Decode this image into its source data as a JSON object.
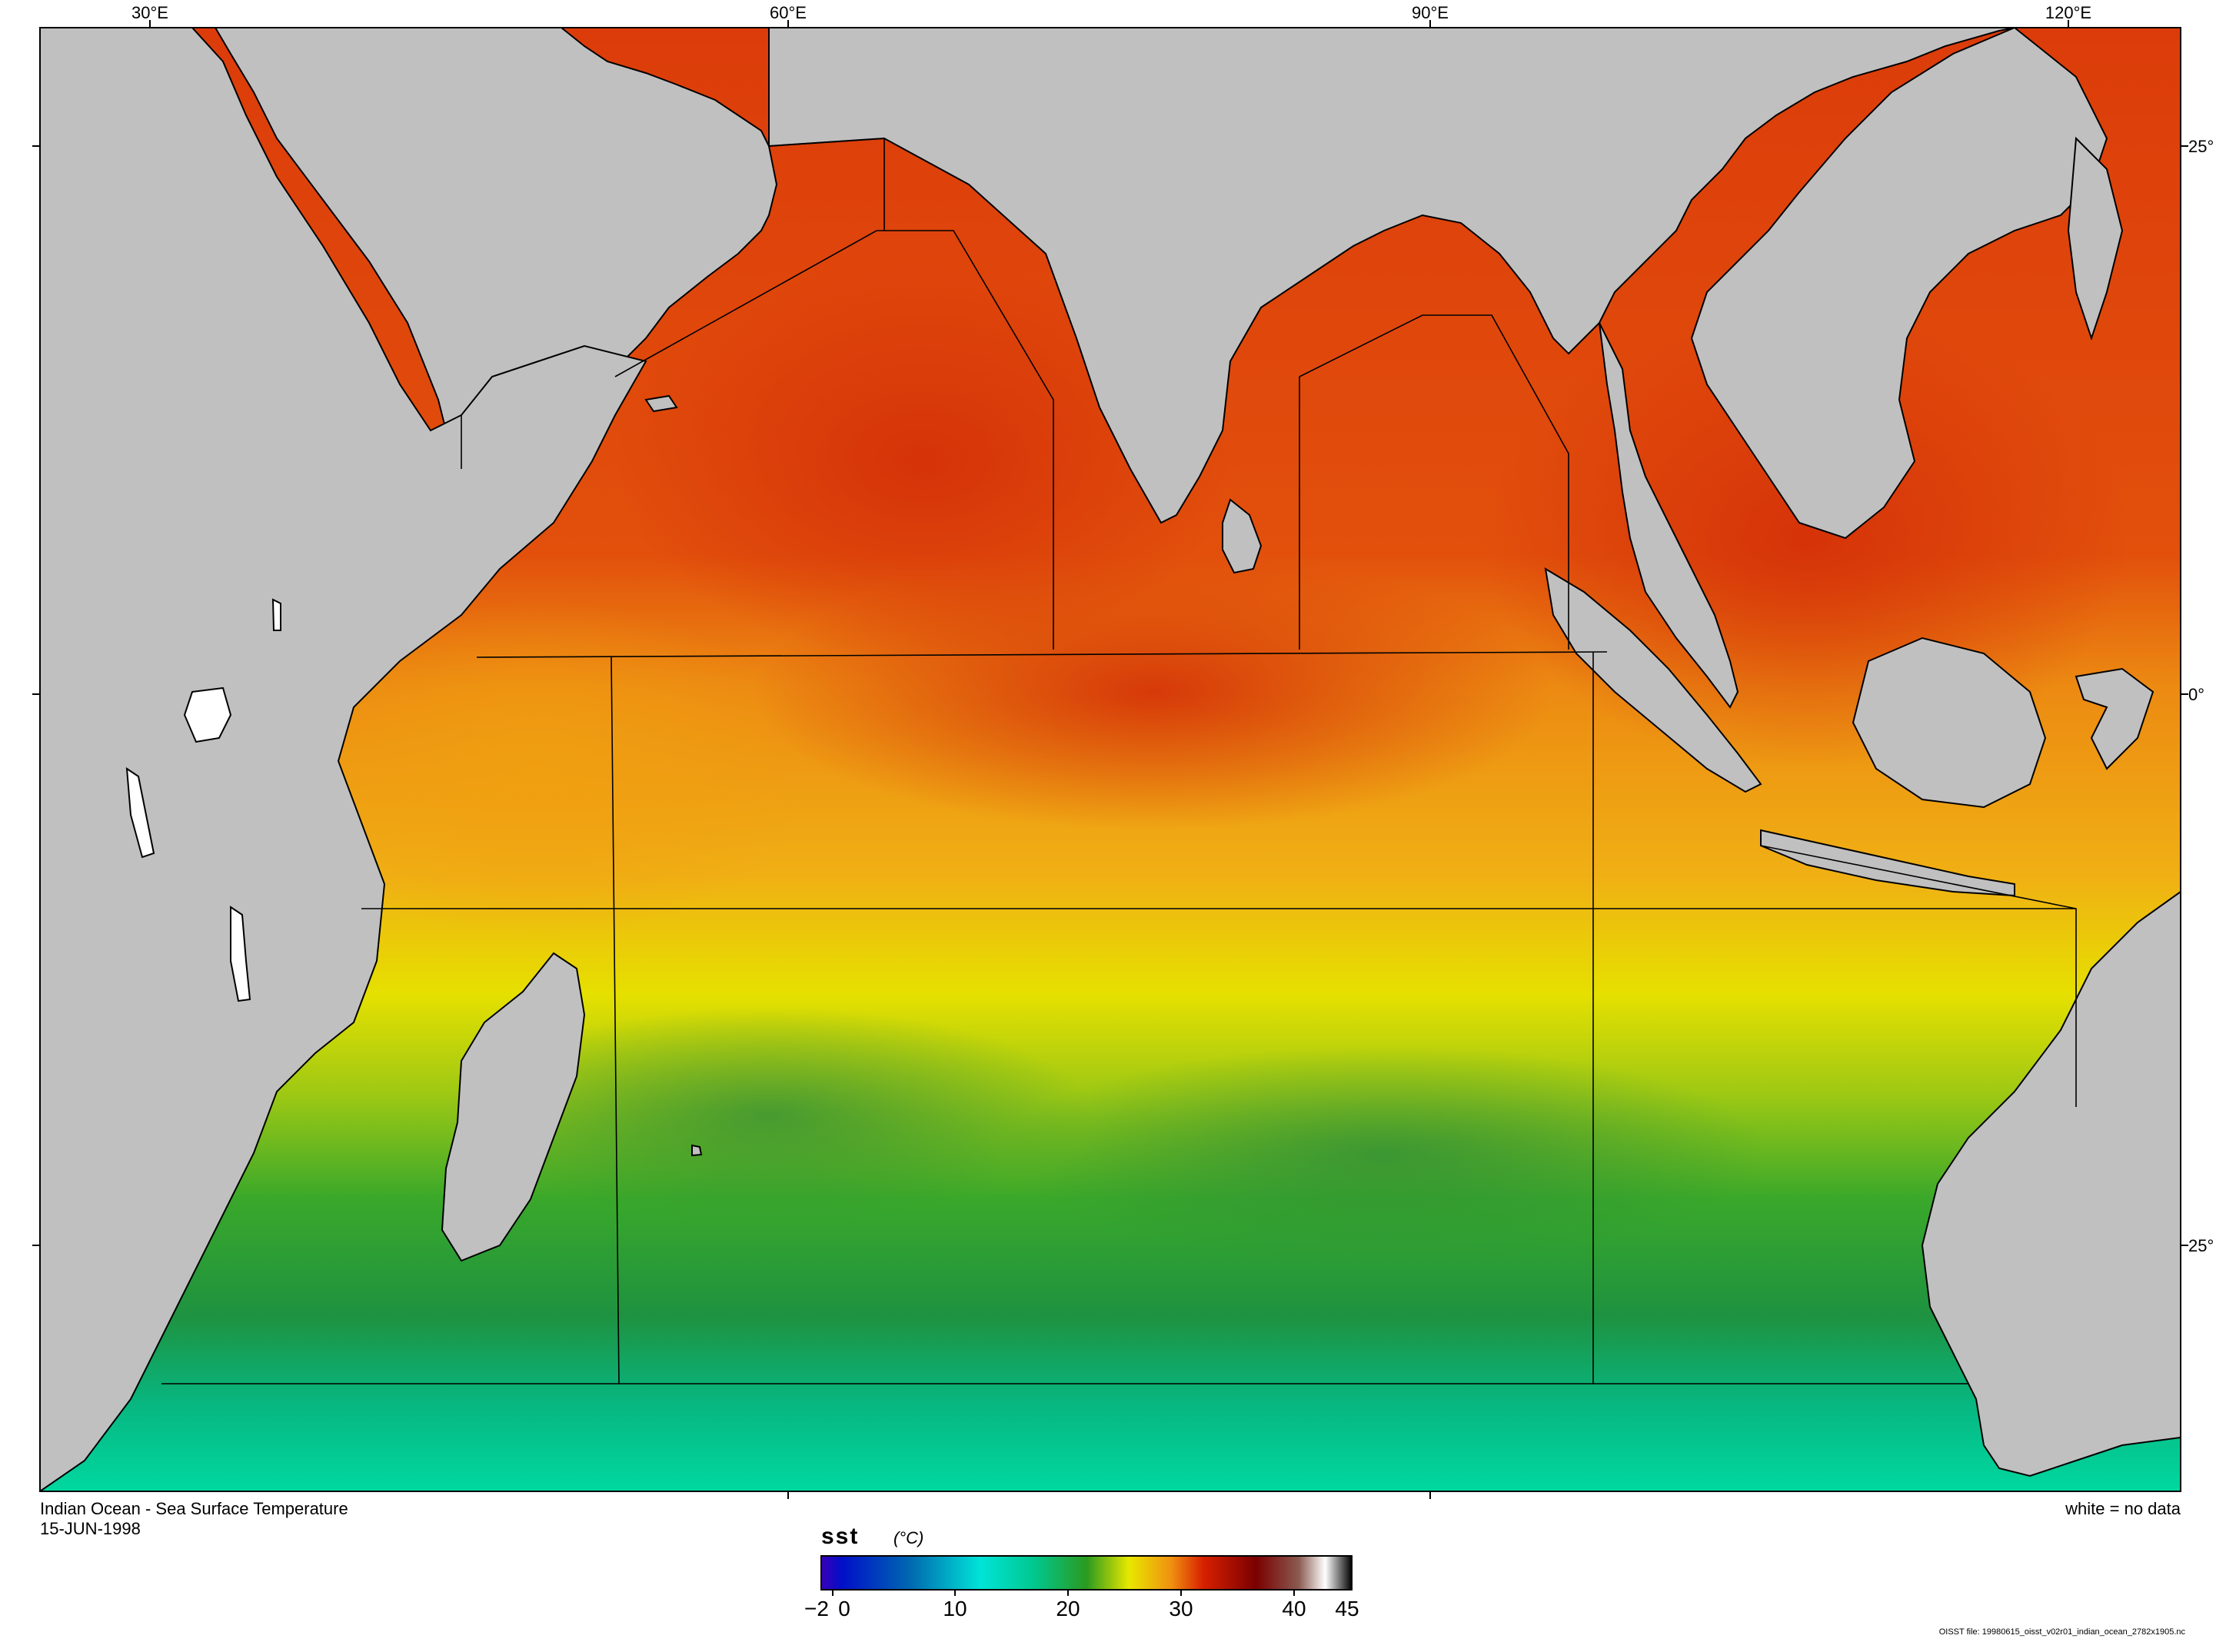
{
  "map": {
    "title": "Indian Ocean - Sea Surface Temperature",
    "date": "15-JUN-1998",
    "note": "white = no data",
    "lon_labels": [
      "30°E",
      "60°E",
      "90°E",
      "120°E"
    ],
    "lat_labels": [
      "25°",
      "0°",
      "25°"
    ],
    "colors": {
      "land": "#c0c0c0",
      "water_cold": "#00d8a0",
      "water_cool": "#1e9a3a",
      "water_mid": "#e6e600",
      "water_warm": "#f08c10",
      "water_hot": "#dc3c0a"
    }
  },
  "legend": {
    "variable": "sst",
    "units": "(°C)",
    "ticks": [
      "−2",
      "0",
      "10",
      "20",
      "30",
      "40",
      "45"
    ],
    "range": [
      -2,
      45
    ],
    "tick_values": [
      -2,
      0,
      10,
      20,
      30,
      40,
      45
    ],
    "colors": [
      "#3a00b8",
      "#0010c8",
      "#006ab0",
      "#00e4d8",
      "#00c890",
      "#2a9a20",
      "#e8e800",
      "#f09010",
      "#d82000",
      "#7a0000",
      "#8a5a50",
      "#ffffff",
      "#000000"
    ]
  },
  "footer": {
    "file": "OISST file: 19980615_oisst_v02r01_indian_ocean_2782x1905.nc"
  }
}
